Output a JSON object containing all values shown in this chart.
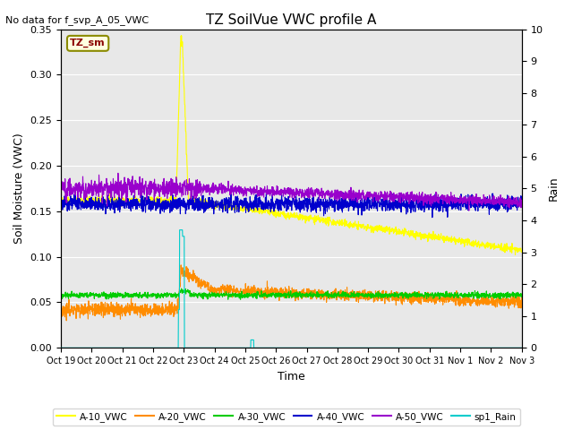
{
  "title": "TZ SoilVue VWC profile A",
  "no_data_text": "No data for f_svp_A_05_VWC",
  "tz_sm_label": "TZ_sm",
  "xlabel": "Time",
  "ylabel_left": "Soil Moisture (VWC)",
  "ylabel_right": "Rain",
  "ylim_left": [
    0.0,
    0.35
  ],
  "ylim_right": [
    0.0,
    10.0
  ],
  "xtick_labels": [
    "Oct 19",
    "Oct 20",
    "Oct 21",
    "Oct 22",
    "Oct 23",
    "Oct 24",
    "Oct 25",
    "Oct 26",
    "Oct 27",
    "Oct 28",
    "Oct 29",
    "Oct 30",
    "Oct 31",
    "Nov 1",
    "Nov 2",
    "Nov 3"
  ],
  "yticks_left": [
    0.0,
    0.05,
    0.1,
    0.15,
    0.2,
    0.25,
    0.3,
    0.35
  ],
  "yticks_right": [
    0.0,
    1.0,
    2.0,
    3.0,
    4.0,
    5.0,
    6.0,
    7.0,
    8.0,
    9.0,
    10.0
  ],
  "colors": {
    "A10": "#ffff00",
    "A20": "#ff8c00",
    "A30": "#00cc00",
    "A40": "#0000cc",
    "A50": "#9900cc",
    "rain": "#00cccc",
    "bg_gray": "#e8e8e8"
  },
  "legend_entries": [
    "A-10_VWC",
    "A-20_VWC",
    "A-30_VWC",
    "A-40_VWC",
    "A-50_VWC",
    "sp1_Rain"
  ],
  "figsize": [
    6.4,
    4.8
  ],
  "dpi": 100
}
